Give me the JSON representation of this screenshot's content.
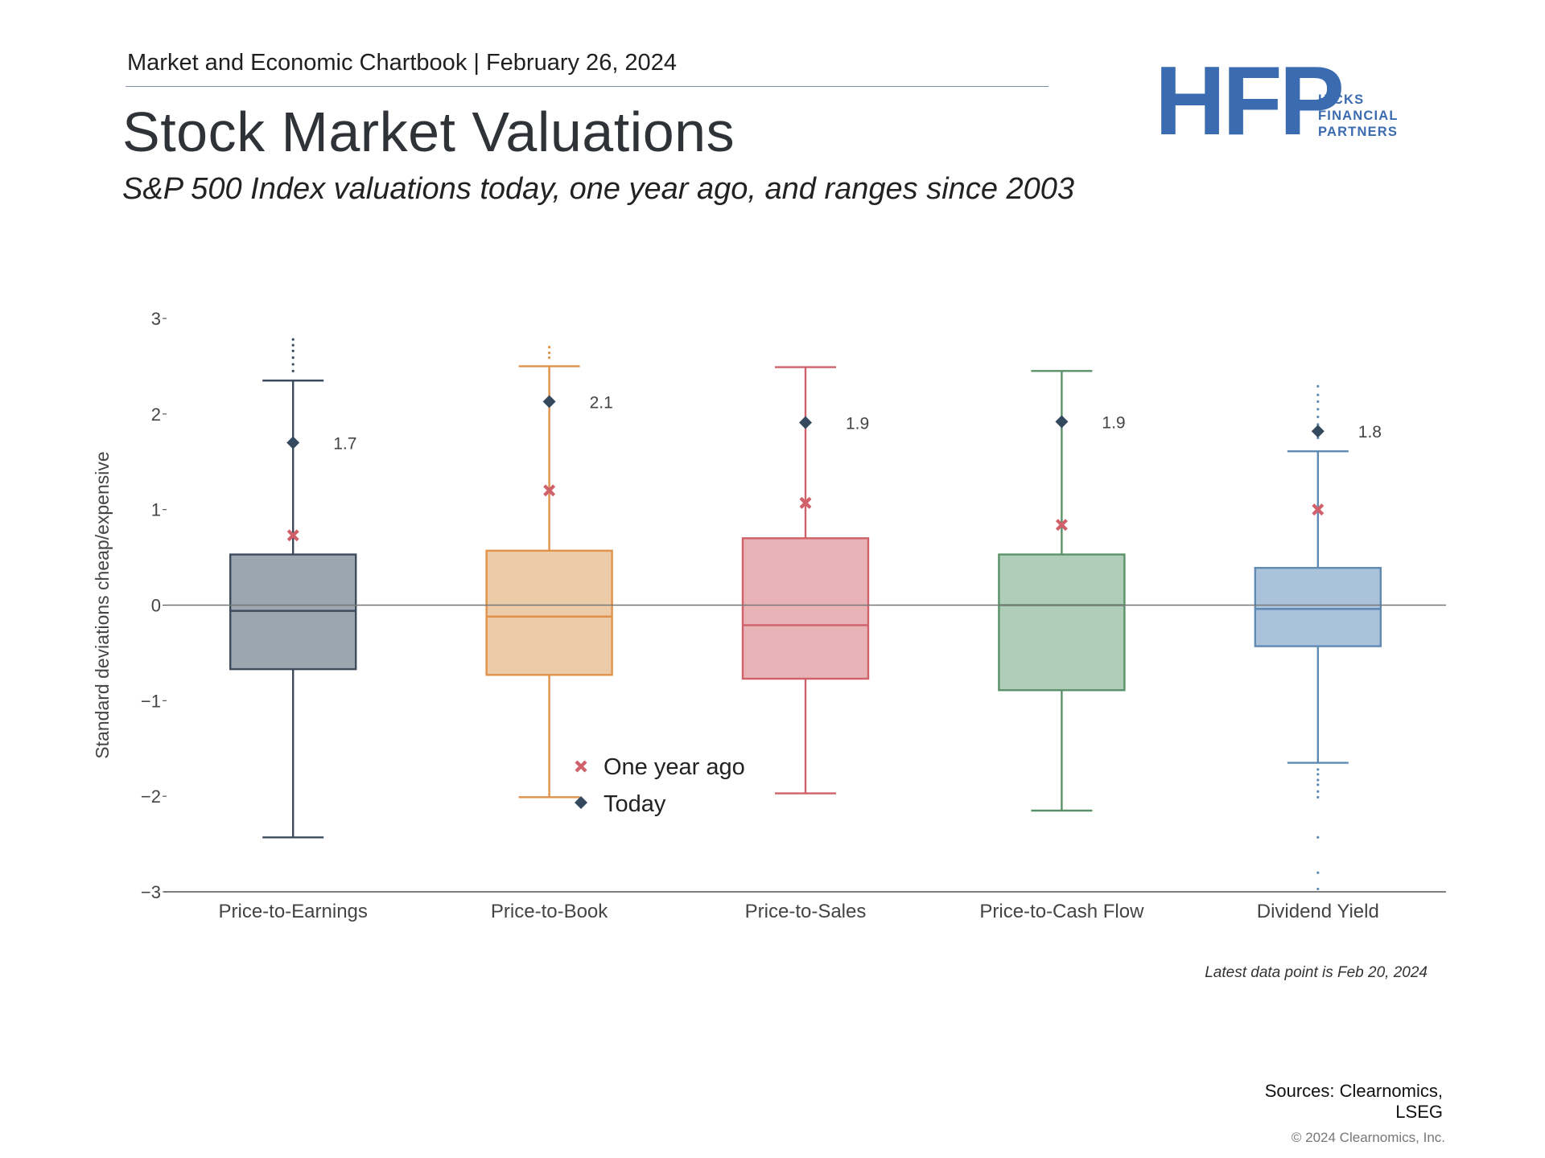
{
  "header": {
    "chartbook": "Market and Economic Chartbook | February 26, 2024",
    "title": "Stock Market Valuations",
    "subtitle": "S&P 500 Index valuations today, one year ago, and ranges since 2003"
  },
  "logo": {
    "mark": "HFP",
    "line1": "HICKS",
    "line2": "FINANCIAL",
    "line3": "PARTNERS",
    "color": "#3b6bb0"
  },
  "chart_data": {
    "type": "box",
    "title": "Stock Market Valuations",
    "ylabel": "Standard deviations cheap/expensive",
    "xlabel": "",
    "ylim": [
      -3,
      3
    ],
    "yticks": [
      3,
      2,
      1,
      0,
      -1,
      -2,
      -3
    ],
    "ytick_labels": [
      "3",
      "2",
      "1",
      "0",
      "−1",
      "−2",
      "−3"
    ],
    "categories": [
      "Price-to-Earnings",
      "Price-to-Book",
      "Price-to-Sales",
      "Price-to-Cash Flow",
      "Dividend Yield"
    ],
    "series": [
      {
        "name": "Price-to-Earnings",
        "color": "#3d4b5c",
        "fill": "#9ca6af",
        "whisker_low": -2.43,
        "q1": -0.67,
        "median": -0.06,
        "q3": 0.53,
        "whisker_high": 2.35,
        "outliers": [
          2.45,
          2.52,
          2.59,
          2.66,
          2.72,
          2.78
        ],
        "one_year_ago": 0.73,
        "today": 1.7,
        "today_label": "1.7"
      },
      {
        "name": "Price-to-Book",
        "color": "#e0924a",
        "fill": "#eccba8",
        "whisker_low": -2.01,
        "q1": -0.73,
        "median": -0.12,
        "q3": 0.57,
        "whisker_high": 2.5,
        "outliers": [
          2.59,
          2.64,
          2.7
        ],
        "one_year_ago": 1.2,
        "today": 2.13,
        "today_label": "2.1"
      },
      {
        "name": "Price-to-Sales",
        "color": "#d0616a",
        "fill": "#e8b3b6",
        "whisker_low": -1.97,
        "q1": -0.77,
        "median": -0.21,
        "q3": 0.7,
        "whisker_high": 2.49,
        "outliers": [],
        "one_year_ago": 1.07,
        "today": 1.91,
        "today_label": "1.9"
      },
      {
        "name": "Price-to-Cash Flow",
        "color": "#5a9168",
        "fill": "#b0cdb9",
        "whisker_low": -2.15,
        "q1": -0.89,
        "median": 0.0,
        "q3": 0.53,
        "whisker_high": 2.45,
        "outliers": [],
        "one_year_ago": 0.84,
        "today": 1.92,
        "today_label": "1.9"
      },
      {
        "name": "Dividend Yield",
        "color": "#5f8ab4",
        "fill": "#aac3da",
        "whisker_low": -1.65,
        "q1": -0.43,
        "median": -0.04,
        "q3": 0.39,
        "whisker_high": 1.61,
        "outliers": [
          -1.72,
          -1.77,
          -1.83,
          -1.88,
          -1.95,
          -2.01,
          -2.43,
          -2.8,
          -2.97,
          1.75,
          1.8,
          1.89,
          1.97,
          2.05,
          2.13,
          2.2,
          2.29
        ],
        "one_year_ago": 1.0,
        "today": 1.82,
        "today_label": "1.8"
      }
    ],
    "legend": {
      "position": "center-bottom",
      "one_year_ago": "One year ago",
      "today": "Today",
      "one_year_ago_color": "#d0616a",
      "today_color": "#34495e"
    },
    "zero_line": true
  },
  "footnote": "Latest data point is Feb 20, 2024",
  "sources": "Sources: Clearnomics, LSEG",
  "copyright": "© 2024 Clearnomics, Inc."
}
